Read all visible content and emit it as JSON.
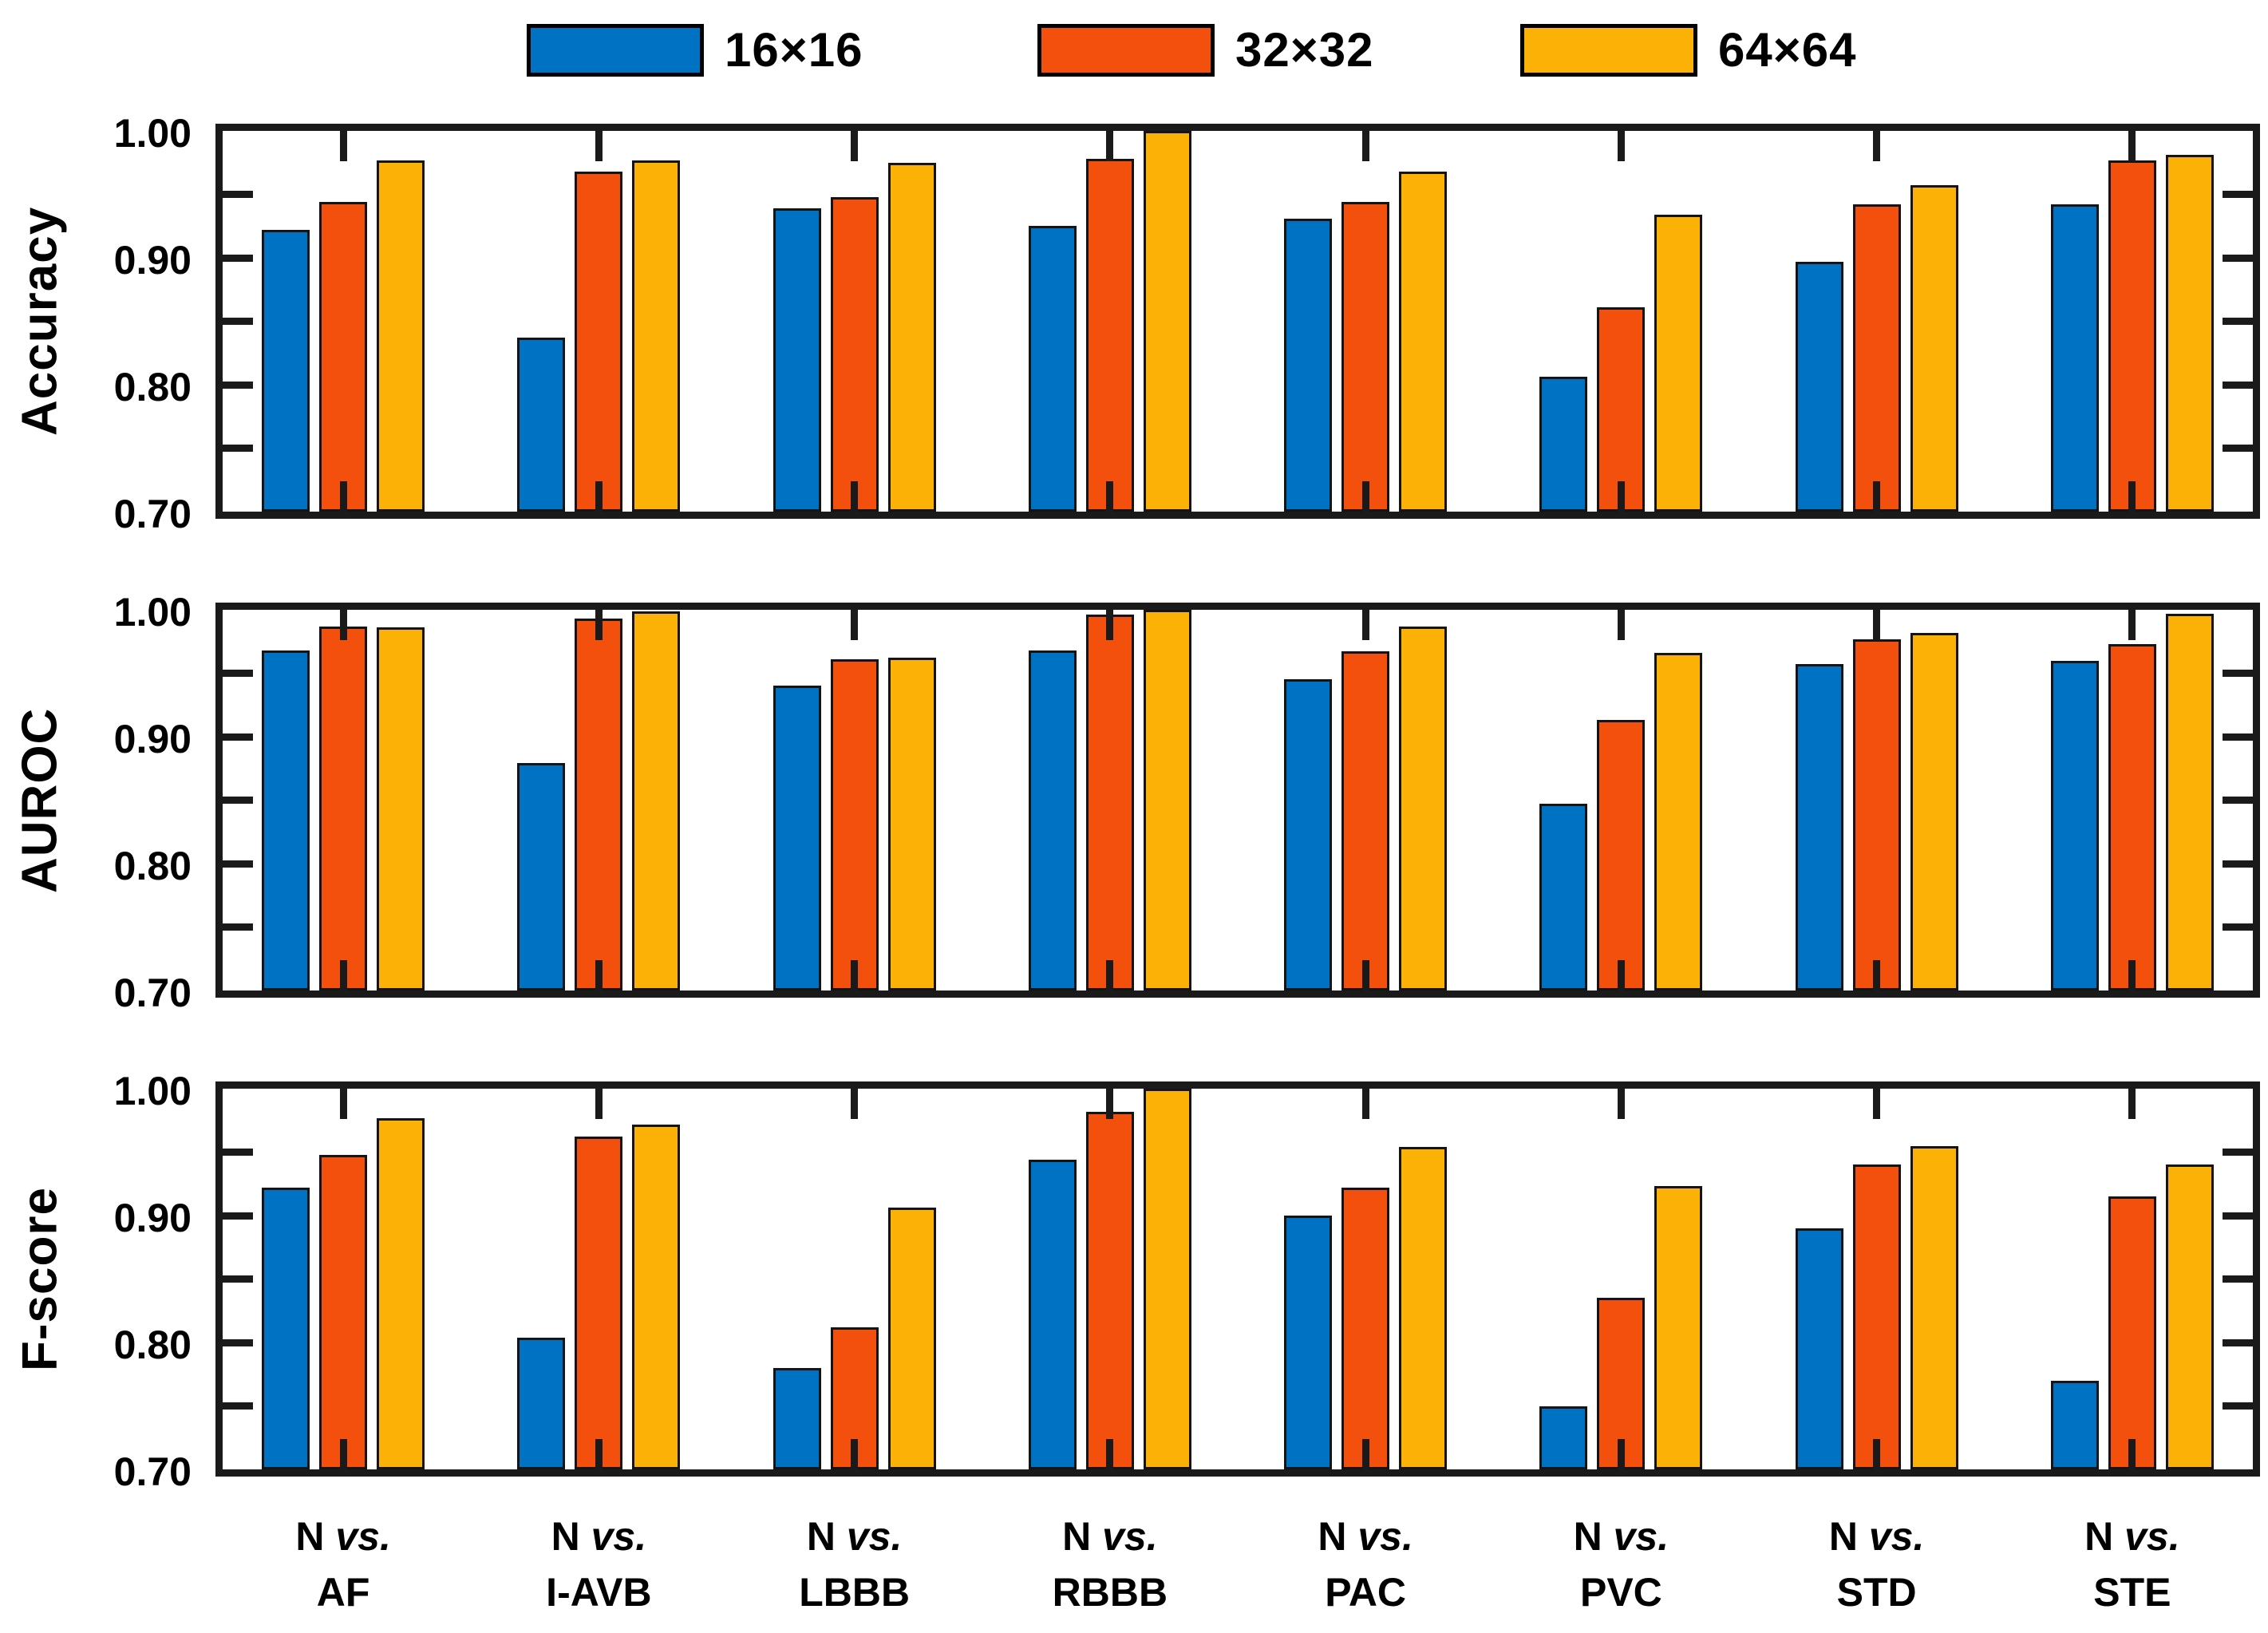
{
  "figure": {
    "background": "#FFFFFF",
    "axis_color": "#1A1A1A",
    "text_color": "#000000"
  },
  "legend": {
    "position": "top",
    "items": [
      {
        "label": "16×16",
        "color": "#0072C3",
        "swatch": "blue-rect-swatch"
      },
      {
        "label": "32×32",
        "color": "#F3500D",
        "swatch": "red-rect-swatch"
      },
      {
        "label": "64×64",
        "color": "#FCB107",
        "swatch": "orange-rect-swatch"
      }
    ]
  },
  "chart_data": {
    "type": "bar",
    "categories": [
      "N vs. AF",
      "N vs. I-AVB",
      "N vs. LBBB",
      "N vs. RBBB",
      "N vs. PAC",
      "N vs. PVC",
      "N vs. STD",
      "N vs. STE"
    ],
    "x_tick_labels": [
      {
        "line1_normal": "N ",
        "line1_italic": "vs.",
        "line2": "AF"
      },
      {
        "line1_normal": "N ",
        "line1_italic": "vs.",
        "line2": "I-AVB"
      },
      {
        "line1_normal": "N ",
        "line1_italic": "vs.",
        "line2": "LBBB"
      },
      {
        "line1_normal": "N ",
        "line1_italic": "vs.",
        "line2": "RBBB"
      },
      {
        "line1_normal": "N ",
        "line1_italic": "vs.",
        "line2": "PAC"
      },
      {
        "line1_normal": "N ",
        "line1_italic": "vs.",
        "line2": "PVC"
      },
      {
        "line1_normal": "N ",
        "line1_italic": "vs.",
        "line2": "STD"
      },
      {
        "line1_normal": "N ",
        "line1_italic": "vs.",
        "line2": "STE"
      }
    ],
    "ylim": [
      0.7,
      1.0
    ],
    "yticks": [
      0.7,
      0.8,
      0.9,
      1.0
    ],
    "ytick_labels": [
      "0.70",
      "0.80",
      "0.90",
      "1.00"
    ],
    "minor_tick_values": [
      0.75,
      0.8,
      0.85,
      0.9,
      0.95
    ],
    "minor_tick_step": 0.05,
    "grid": false,
    "legend_entries": [
      "16×16",
      "32×32",
      "64×64"
    ],
    "panels": [
      {
        "ylabel": "Accuracy",
        "series": [
          {
            "name": "16×16",
            "color": "#0072C3",
            "values": [
              0.922,
              0.837,
              0.939,
              0.925,
              0.931,
              0.806,
              0.897,
              0.942
            ]
          },
          {
            "name": "32×32",
            "color": "#F3500D",
            "values": [
              0.944,
              0.968,
              0.948,
              0.978,
              0.944,
              0.861,
              0.942,
              0.977
            ]
          },
          {
            "name": "64×64",
            "color": "#FCB107",
            "values": [
              0.977,
              0.977,
              0.975,
              1.0,
              0.968,
              0.934,
              0.957,
              0.981
            ]
          }
        ]
      },
      {
        "ylabel": "AUROC",
        "series": [
          {
            "name": "16×16",
            "color": "#0072C3",
            "values": [
              0.968,
              0.879,
              0.94,
              0.968,
              0.945,
              0.847,
              0.957,
              0.96
            ]
          },
          {
            "name": "32×32",
            "color": "#F3500D",
            "values": [
              0.987,
              0.993,
              0.961,
              0.996,
              0.967,
              0.913,
              0.977,
              0.973
            ]
          },
          {
            "name": "64×64",
            "color": "#FCB107",
            "values": [
              0.986,
              0.999,
              0.962,
              1.0,
              0.987,
              0.966,
              0.982,
              0.997
            ]
          }
        ]
      },
      {
        "ylabel": "F-score",
        "series": [
          {
            "name": "16×16",
            "color": "#0072C3",
            "values": [
              0.922,
              0.804,
              0.78,
              0.944,
              0.9,
              0.75,
              0.89,
              0.77
            ]
          },
          {
            "name": "32×32",
            "color": "#F3500D",
            "values": [
              0.948,
              0.962,
              0.812,
              0.982,
              0.922,
              0.835,
              0.94,
              0.915
            ]
          },
          {
            "name": "64×64",
            "color": "#FCB107",
            "values": [
              0.977,
              0.972,
              0.906,
              1.0,
              0.954,
              0.923,
              0.955,
              0.94
            ]
          }
        ]
      }
    ]
  }
}
